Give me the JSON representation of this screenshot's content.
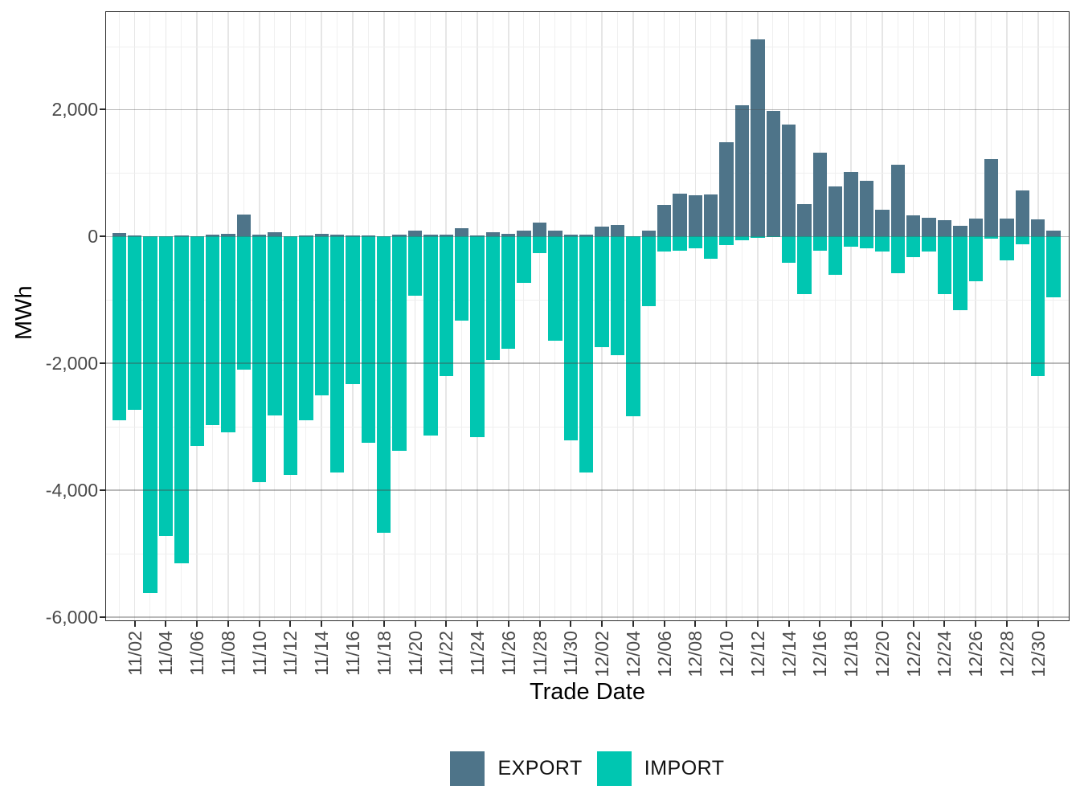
{
  "chart_data": {
    "type": "bar",
    "title": "",
    "xlabel": "Trade Date",
    "ylabel": "MWh",
    "legend_position": "bottom",
    "grid": "major horizontal lines drawn over bars; light minor grid under bars",
    "ylim": [
      -6050,
      3545
    ],
    "x": [
      "11/01",
      "11/02",
      "11/03",
      "11/04",
      "11/05",
      "11/06",
      "11/07",
      "11/08",
      "11/09",
      "11/10",
      "11/11",
      "11/12",
      "11/13",
      "11/14",
      "11/15",
      "11/16",
      "11/17",
      "11/18",
      "11/19",
      "11/20",
      "11/21",
      "11/22",
      "11/23",
      "11/24",
      "11/25",
      "11/26",
      "11/27",
      "11/28",
      "11/29",
      "11/30",
      "12/01",
      "12/02",
      "12/03",
      "12/04",
      "12/05",
      "12/06",
      "12/07",
      "12/08",
      "12/09",
      "12/10",
      "12/11",
      "12/12",
      "12/13",
      "12/14",
      "12/15",
      "12/16",
      "12/17",
      "12/18",
      "12/19",
      "12/20",
      "12/21",
      "12/22",
      "12/23",
      "12/24",
      "12/25",
      "12/26",
      "12/27",
      "12/28",
      "12/29",
      "12/30",
      "12/31"
    ],
    "xtick_every_days": 2,
    "series": [
      {
        "name": "EXPORT",
        "color": "#4e7489",
        "values": [
          50,
          15,
          8,
          8,
          21,
          8,
          25,
          42,
          342,
          33,
          63,
          8,
          17,
          38,
          33,
          21,
          20,
          10,
          25,
          89,
          30,
          33,
          127,
          20,
          63,
          42,
          96,
          215,
          89,
          25,
          25,
          150,
          180,
          0,
          89,
          498,
          676,
          650,
          663,
          1482,
          2069,
          3110,
          1976,
          1765,
          507,
          1325,
          793,
          1018,
          878,
          422,
          1128,
          329,
          291,
          253,
          165,
          283,
          1220,
          283,
          726,
          270,
          89
        ]
      },
      {
        "name": "IMPORT",
        "color": "#00c6b1",
        "values": [
          -2900,
          -2730,
          -5620,
          -4720,
          -5155,
          -3310,
          -2975,
          -3090,
          -2100,
          -3875,
          -2820,
          -3755,
          -2895,
          -2510,
          -3725,
          -2330,
          -3255,
          -4670,
          -3380,
          -940,
          -3145,
          -2205,
          -1330,
          -3165,
          -1945,
          -1775,
          -730,
          -260,
          -1645,
          -3210,
          -3725,
          -1740,
          -1875,
          -2840,
          -1105,
          -240,
          -230,
          -190,
          -355,
          -135,
          -65,
          -22,
          -10,
          -410,
          -910,
          -220,
          -610,
          -157,
          -190,
          -233,
          -580,
          -325,
          -240,
          -910,
          -1160,
          -700,
          -30,
          -380,
          -120,
          -2205,
          -960
        ]
      }
    ],
    "yticks": [
      {
        "value": 2000,
        "label": "2,000"
      },
      {
        "value": 0,
        "label": "0"
      },
      {
        "value": -2000,
        "label": "-2,000"
      },
      {
        "value": -4000,
        "label": "-4,000"
      },
      {
        "value": -6000,
        "label": "-6,000"
      }
    ],
    "yticks_minor": [
      3000,
      1000,
      -1000,
      -3000,
      -5000
    ]
  }
}
